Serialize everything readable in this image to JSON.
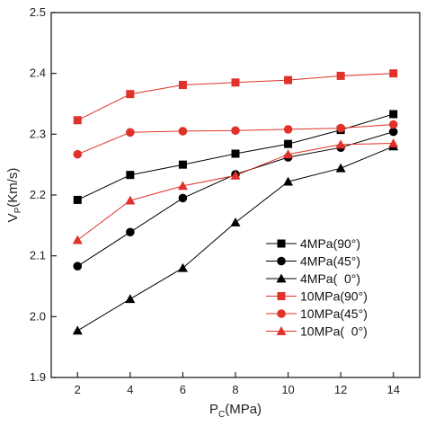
{
  "chart_data": {
    "type": "line",
    "xlabel": {
      "main": "P",
      "sub": "C",
      "unit": "(MPa)"
    },
    "ylabel": {
      "main": "V",
      "sub": "P",
      "unit": "(Km/s)"
    },
    "xlim": [
      1,
      15
    ],
    "ylim": [
      1.9,
      2.5
    ],
    "xticks": [
      2,
      4,
      6,
      8,
      10,
      12,
      14
    ],
    "yticks": [
      1.9,
      2.0,
      2.1,
      2.2,
      2.3,
      2.4,
      2.5
    ],
    "x": [
      2,
      4,
      6,
      8,
      10,
      12,
      14
    ],
    "legend_position": "bottom-right",
    "series": [
      {
        "name": "4MPa(90°)",
        "values": [
          2.192,
          2.233,
          2.25,
          2.268,
          2.284,
          2.307,
          2.333
        ],
        "color": "#000000",
        "marker": "square"
      },
      {
        "name": "4MPa(45°)",
        "values": [
          2.083,
          2.139,
          2.195,
          2.234,
          2.262,
          2.278,
          2.304
        ],
        "color": "#000000",
        "marker": "circle"
      },
      {
        "name": "4MPa(  0°)",
        "values": [
          1.977,
          2.029,
          2.08,
          2.155,
          2.222,
          2.244,
          2.28
        ],
        "color": "#000000",
        "marker": "triangle"
      },
      {
        "name": "10MPa(90°)",
        "values": [
          2.323,
          2.366,
          2.381,
          2.385,
          2.389,
          2.396,
          2.4
        ],
        "color": "#e0312a",
        "marker": "square"
      },
      {
        "name": "10MPa(45°)",
        "values": [
          2.267,
          2.303,
          2.305,
          2.306,
          2.308,
          2.31,
          2.316
        ],
        "color": "#e0312a",
        "marker": "circle"
      },
      {
        "name": "10MPa(  0°)",
        "values": [
          2.126,
          2.191,
          2.215,
          2.232,
          2.267,
          2.283,
          2.285
        ],
        "color": "#e0312a",
        "marker": "triangle"
      }
    ]
  }
}
